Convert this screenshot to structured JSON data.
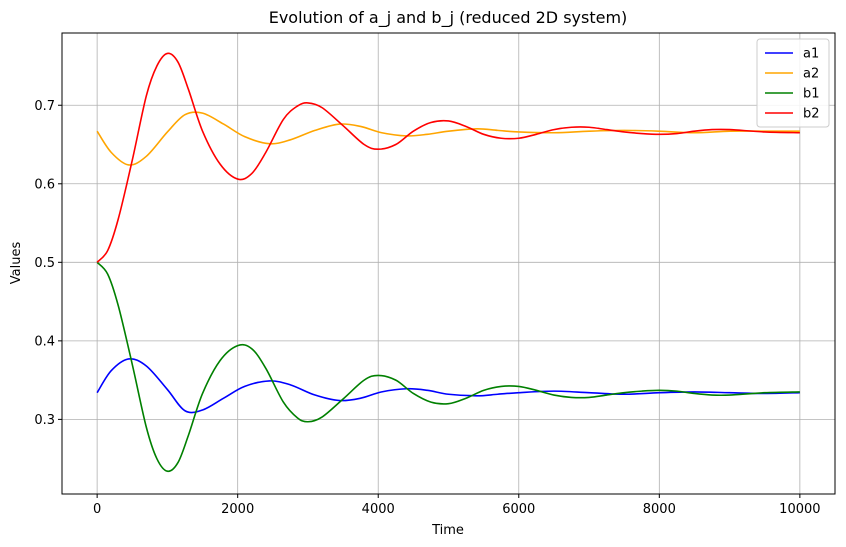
{
  "chart_data": {
    "type": "line",
    "title": "Evolution of a_j and b_j (reduced 2D system)",
    "xlabel": "Time",
    "ylabel": "Values",
    "xlim": [
      -500,
      10500
    ],
    "ylim": [
      0.205,
      0.792
    ],
    "xticks": [
      0,
      2000,
      4000,
      6000,
      8000,
      10000
    ],
    "xtick_labels": [
      "0",
      "2000",
      "4000",
      "6000",
      "8000",
      "10000"
    ],
    "yticks": [
      0.3,
      0.4,
      0.5,
      0.6,
      0.7
    ],
    "ytick_labels": [
      "0.3",
      "0.4",
      "0.5",
      "0.6",
      "0.7"
    ],
    "grid": true,
    "legend_position": "top-right",
    "series": [
      {
        "name": "a1",
        "color": "#0000ff",
        "x": [
          0,
          200,
          450,
          700,
          1000,
          1250,
          1500,
          1800,
          2100,
          2450,
          2750,
          3100,
          3450,
          3750,
          4050,
          4400,
          4700,
          5000,
          5400,
          5700,
          6000,
          6500,
          7000,
          7500,
          8000,
          8500,
          9000,
          9500,
          10000
        ],
        "y": [
          0.334,
          0.362,
          0.377,
          0.368,
          0.338,
          0.311,
          0.312,
          0.327,
          0.342,
          0.349,
          0.344,
          0.331,
          0.324,
          0.327,
          0.335,
          0.339,
          0.337,
          0.332,
          0.33,
          0.332,
          0.334,
          0.336,
          0.334,
          0.332,
          0.334,
          0.335,
          0.334,
          0.333,
          0.334
        ]
      },
      {
        "name": "a2",
        "color": "#ffa500",
        "x": [
          0,
          200,
          450,
          700,
          1000,
          1250,
          1500,
          1800,
          2100,
          2450,
          2750,
          3100,
          3450,
          3750,
          4050,
          4400,
          4700,
          5000,
          5400,
          5700,
          6000,
          6500,
          7000,
          7500,
          8000,
          8500,
          9000,
          9500,
          10000
        ],
        "y": [
          0.667,
          0.64,
          0.624,
          0.635,
          0.666,
          0.688,
          0.69,
          0.676,
          0.66,
          0.651,
          0.656,
          0.668,
          0.676,
          0.673,
          0.665,
          0.661,
          0.663,
          0.667,
          0.67,
          0.668,
          0.666,
          0.665,
          0.667,
          0.668,
          0.667,
          0.665,
          0.667,
          0.667,
          0.667
        ]
      },
      {
        "name": "b1",
        "color": "#008000",
        "x": [
          0,
          150,
          300,
          500,
          700,
          850,
          1000,
          1150,
          1300,
          1500,
          1750,
          2000,
          2200,
          2400,
          2650,
          2850,
          3000,
          3200,
          3500,
          3800,
          4000,
          4250,
          4500,
          4750,
          5000,
          5250,
          5500,
          5750,
          6000,
          6250,
          6500,
          6750,
          7000,
          7250,
          7500,
          7750,
          8000,
          8250,
          8500,
          8750,
          9000,
          9500,
          10000
        ],
        "y": [
          0.5,
          0.485,
          0.445,
          0.37,
          0.29,
          0.25,
          0.234,
          0.245,
          0.28,
          0.333,
          0.375,
          0.394,
          0.39,
          0.365,
          0.322,
          0.302,
          0.297,
          0.303,
          0.326,
          0.35,
          0.356,
          0.35,
          0.333,
          0.322,
          0.32,
          0.327,
          0.337,
          0.342,
          0.342,
          0.337,
          0.331,
          0.328,
          0.328,
          0.331,
          0.334,
          0.336,
          0.337,
          0.336,
          0.333,
          0.331,
          0.331,
          0.334,
          0.335
        ]
      },
      {
        "name": "b2",
        "color": "#ff0000",
        "x": [
          0,
          150,
          300,
          500,
          700,
          850,
          1000,
          1150,
          1300,
          1500,
          1750,
          2000,
          2200,
          2400,
          2650,
          2850,
          3000,
          3200,
          3500,
          3800,
          4000,
          4250,
          4500,
          4750,
          5000,
          5250,
          5500,
          5750,
          6000,
          6250,
          6500,
          6750,
          7000,
          7250,
          7500,
          7750,
          8000,
          8250,
          8500,
          8750,
          9000,
          9500,
          10000
        ],
        "y": [
          0.5,
          0.515,
          0.555,
          0.63,
          0.712,
          0.75,
          0.766,
          0.755,
          0.72,
          0.667,
          0.625,
          0.606,
          0.613,
          0.64,
          0.682,
          0.699,
          0.703,
          0.697,
          0.674,
          0.65,
          0.644,
          0.65,
          0.667,
          0.678,
          0.68,
          0.673,
          0.663,
          0.658,
          0.658,
          0.663,
          0.669,
          0.672,
          0.672,
          0.669,
          0.666,
          0.664,
          0.663,
          0.664,
          0.667,
          0.669,
          0.669,
          0.666,
          0.665
        ]
      }
    ]
  }
}
